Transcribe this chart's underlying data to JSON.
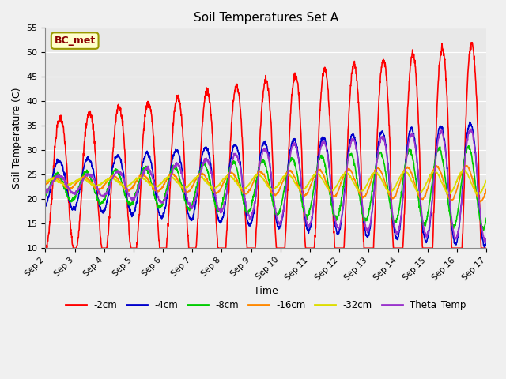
{
  "title": "Soil Temperatures Set A",
  "xlabel": "Time",
  "ylabel": "Soil Temperature (C)",
  "ylim": [
    10,
    55
  ],
  "xlim": [
    0,
    15
  ],
  "background_color": "#f0f0f0",
  "plot_bg_color": "#e8e8e8",
  "annotation_text": "BC_met",
  "annotation_bg": "#ffffcc",
  "annotation_border": "#999900",
  "annotation_text_color": "#8b0000",
  "series": {
    "-2cm": {
      "color": "#ff0000",
      "lw": 1.2
    },
    "-4cm": {
      "color": "#0000cc",
      "lw": 1.2
    },
    "-8cm": {
      "color": "#00cc00",
      "lw": 1.2
    },
    "-16cm": {
      "color": "#ff8800",
      "lw": 1.2
    },
    "-32cm": {
      "color": "#dddd00",
      "lw": 1.2
    },
    "Theta_Temp": {
      "color": "#9933cc",
      "lw": 1.2
    }
  },
  "xtick_labels": [
    "Sep 2",
    "Sep 3",
    "Sep 4",
    "Sep 5",
    "Sep 6",
    "Sep 7",
    "Sep 8",
    "Sep 9",
    "Sep 10",
    "Sep 11",
    "Sep 12",
    "Sep 13",
    "Sep 14",
    "Sep 15",
    "Sep 16",
    "Sep 17"
  ],
  "xtick_positions": [
    0,
    1,
    2,
    3,
    4,
    5,
    6,
    7,
    8,
    9,
    10,
    11,
    12,
    13,
    14,
    15
  ],
  "ytick_labels": [
    "10",
    "15",
    "20",
    "25",
    "30",
    "35",
    "40",
    "45",
    "50",
    "55"
  ],
  "ytick_positions": [
    10,
    15,
    20,
    25,
    30,
    35,
    40,
    45,
    50,
    55
  ],
  "grid_color": "#ffffff",
  "legend_labels": [
    "-2cm",
    "-4cm",
    "-8cm",
    "-16cm",
    "-32cm",
    "Theta_Temp"
  ]
}
